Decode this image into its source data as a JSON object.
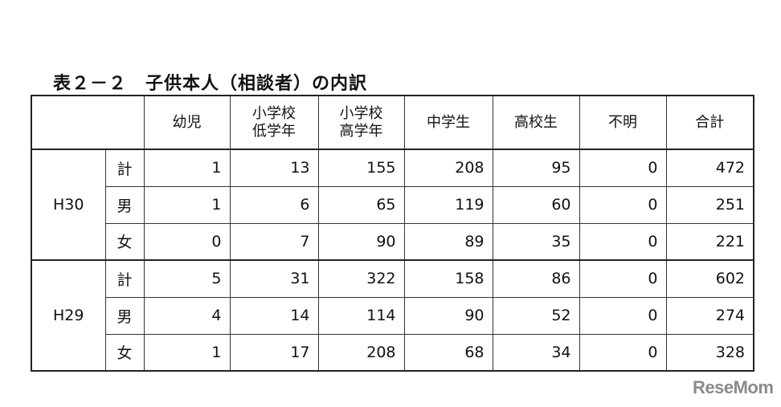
{
  "title": "表２－２　子供本人（相談者）の内訳",
  "headers": [
    "幼児",
    "小学校\n低学年",
    "小学校\n高学年",
    "中学生",
    "高校生",
    "不明",
    "合計"
  ],
  "groups": [
    {
      "year": "H30",
      "rows": [
        {
          "label": "計",
          "values": [
            "1",
            "13",
            "155",
            "208",
            "95",
            "0",
            "472"
          ]
        },
        {
          "label": "男",
          "values": [
            "1",
            "6",
            "65",
            "119",
            "60",
            "0",
            "251"
          ]
        },
        {
          "label": "女",
          "values": [
            "0",
            "7",
            "90",
            "89",
            "35",
            "0",
            "221"
          ]
        }
      ]
    },
    {
      "year": "H29",
      "rows": [
        {
          "label": "計",
          "values": [
            "5",
            "31",
            "322",
            "158",
            "86",
            "0",
            "602"
          ]
        },
        {
          "label": "男",
          "values": [
            "4",
            "14",
            "114",
            "90",
            "52",
            "0",
            "274"
          ]
        },
        {
          "label": "女",
          "values": [
            "1",
            "17",
            "208",
            "68",
            "34",
            "0",
            "328"
          ]
        }
      ]
    }
  ],
  "watermark": "ReseMom"
}
